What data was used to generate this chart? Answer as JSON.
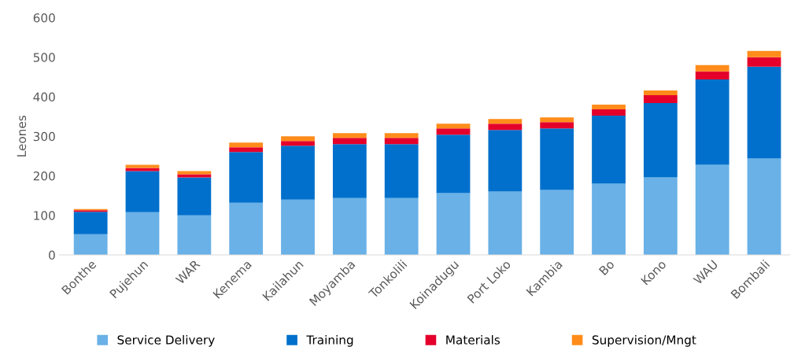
{
  "chart_data": {
    "type": "bar",
    "stacked": true,
    "ylabel": "Leones",
    "categories": [
      "Bonthe",
      "Pujehun",
      "WAR",
      "Kenema",
      "Kailahun",
      "Moyamba",
      "Tonkolili",
      "Koinadugu",
      "Port Loko",
      "Kambia",
      "Bo",
      "Kono",
      "WAU",
      "Bombali"
    ],
    "series": [
      {
        "name": "Service Delivery",
        "color": "#69b1e7",
        "values": [
          52,
          108,
          100,
          132,
          140,
          144,
          144,
          156,
          160,
          164,
          180,
          196,
          228,
          244
        ]
      },
      {
        "name": "Training",
        "color": "#0070cc",
        "values": [
          57,
          104,
          96,
          128,
          136,
          136,
          136,
          148,
          156,
          156,
          172,
          188,
          216,
          232
        ]
      },
      {
        "name": "Materials",
        "color": "#e4002b",
        "values": [
          4,
          8,
          8,
          12,
          12,
          16,
          16,
          16,
          16,
          16,
          16,
          20,
          20,
          24
        ]
      },
      {
        "name": "Supervision/Mngt",
        "color": "#ff8c1a",
        "values": [
          3,
          8,
          8,
          12,
          12,
          12,
          12,
          12,
          12,
          12,
          12,
          12,
          16,
          16
        ]
      }
    ],
    "ylim": [
      0,
      600
    ],
    "yticks": [
      0,
      100,
      200,
      300,
      400,
      500,
      600
    ],
    "grid": false,
    "legend": "bottom"
  }
}
